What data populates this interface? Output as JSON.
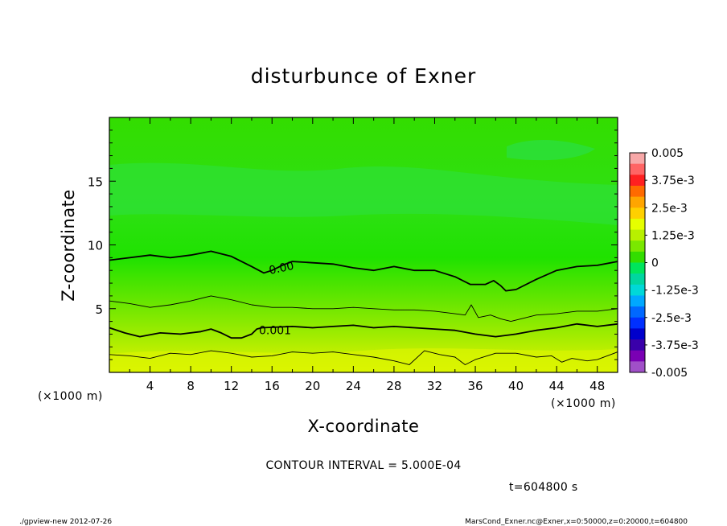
{
  "chart_data": {
    "type": "heatmap",
    "title": "disturbunce of Exner",
    "xlabel": "X-coordinate",
    "ylabel": "Z-coordinate",
    "x_unit": "(×1000 m)",
    "y_unit": "(×1000 m)",
    "xlim": [
      0,
      50
    ],
    "ylim": [
      0,
      20
    ],
    "x_ticks": [
      4,
      8,
      12,
      16,
      20,
      24,
      28,
      32,
      36,
      40,
      44,
      48
    ],
    "y_ticks": [
      5,
      10,
      15
    ],
    "colorbar": {
      "range": [
        -0.005,
        0.005
      ],
      "labels": [
        "0.005",
        "3.75e-3",
        "2.5e-3",
        "1.25e-3",
        "0",
        "-1.25e-3",
        "-2.5e-3",
        "-3.75e-3",
        "-0.005"
      ],
      "colors": [
        "#f7a8a8",
        "#ff6464",
        "#ff2020",
        "#ff6a00",
        "#ffa500",
        "#ffd000",
        "#e6ff00",
        "#b8f000",
        "#7ae800",
        "#33dd00",
        "#00e55c",
        "#00d6a0",
        "#00d8d8",
        "#00a8ff",
        "#0068ff",
        "#0030ff",
        "#0000cc",
        "#3a00aa",
        "#7a00b4",
        "#a050c8"
      ]
    },
    "contour_labels": [
      "0.00",
      "0.001"
    ],
    "contours": [
      {
        "level": 0.0,
        "style": "thick",
        "label": "0.00",
        "points": [
          [
            0,
            8.8
          ],
          [
            2,
            9.0
          ],
          [
            4,
            9.2
          ],
          [
            6,
            9.0
          ],
          [
            8,
            9.2
          ],
          [
            10,
            9.5
          ],
          [
            12,
            9.1
          ],
          [
            14,
            8.3
          ],
          [
            15.2,
            7.8
          ],
          [
            16,
            8.0
          ],
          [
            17,
            8.4
          ],
          [
            18,
            8.7
          ],
          [
            20,
            8.6
          ],
          [
            22,
            8.5
          ],
          [
            24,
            8.2
          ],
          [
            26,
            8.0
          ],
          [
            28,
            8.3
          ],
          [
            30,
            8.0
          ],
          [
            32,
            8.0
          ],
          [
            34,
            7.5
          ],
          [
            35.5,
            6.9
          ],
          [
            37,
            6.9
          ],
          [
            37.8,
            7.2
          ],
          [
            38.5,
            6.8
          ],
          [
            39,
            6.4
          ],
          [
            40,
            6.5
          ],
          [
            42,
            7.3
          ],
          [
            44,
            8.0
          ],
          [
            46,
            8.3
          ],
          [
            48,
            8.4
          ],
          [
            50,
            8.7
          ]
        ]
      },
      {
        "level": 0.0005,
        "style": "thin",
        "points": [
          [
            0,
            5.6
          ],
          [
            2,
            5.4
          ],
          [
            4,
            5.1
          ],
          [
            6,
            5.3
          ],
          [
            8,
            5.6
          ],
          [
            10,
            6.0
          ],
          [
            12,
            5.7
          ],
          [
            14,
            5.3
          ],
          [
            16,
            5.1
          ],
          [
            18,
            5.1
          ],
          [
            20,
            5.0
          ],
          [
            22,
            5.0
          ],
          [
            24,
            5.1
          ],
          [
            26,
            5.0
          ],
          [
            28,
            4.9
          ],
          [
            30,
            4.9
          ],
          [
            32,
            4.8
          ],
          [
            34,
            4.6
          ],
          [
            35,
            4.5
          ],
          [
            35.6,
            5.3
          ],
          [
            36.3,
            4.3
          ],
          [
            37.5,
            4.5
          ],
          [
            38.5,
            4.2
          ],
          [
            39.5,
            4.0
          ],
          [
            40.5,
            4.2
          ],
          [
            42,
            4.5
          ],
          [
            44,
            4.6
          ],
          [
            46,
            4.8
          ],
          [
            48,
            4.8
          ],
          [
            50,
            5.0
          ]
        ]
      },
      {
        "level": 0.001,
        "style": "thick",
        "label": "0.001",
        "points": [
          [
            0,
            3.5
          ],
          [
            1.5,
            3.1
          ],
          [
            3,
            2.8
          ],
          [
            5,
            3.1
          ],
          [
            7,
            3.0
          ],
          [
            9,
            3.2
          ],
          [
            10,
            3.4
          ],
          [
            11,
            3.1
          ],
          [
            12,
            2.7
          ],
          [
            13,
            2.7
          ],
          [
            14,
            3.0
          ],
          [
            14.5,
            3.4
          ],
          [
            15,
            3.5
          ],
          [
            18,
            3.6
          ],
          [
            20,
            3.5
          ],
          [
            22,
            3.6
          ],
          [
            24,
            3.7
          ],
          [
            26,
            3.5
          ],
          [
            28,
            3.6
          ],
          [
            30,
            3.5
          ],
          [
            32,
            3.4
          ],
          [
            34,
            3.3
          ],
          [
            36,
            3.0
          ],
          [
            38,
            2.8
          ],
          [
            40,
            3.0
          ],
          [
            42,
            3.3
          ],
          [
            44,
            3.5
          ],
          [
            46,
            3.8
          ],
          [
            48,
            3.6
          ],
          [
            50,
            3.8
          ]
        ]
      },
      {
        "level": 0.0015,
        "style": "thin",
        "points": [
          [
            0,
            1.4
          ],
          [
            2,
            1.3
          ],
          [
            4,
            1.1
          ],
          [
            6,
            1.5
          ],
          [
            8,
            1.4
          ],
          [
            10,
            1.7
          ],
          [
            12,
            1.5
          ],
          [
            14,
            1.2
          ],
          [
            16,
            1.3
          ],
          [
            18,
            1.6
          ],
          [
            20,
            1.5
          ],
          [
            22,
            1.6
          ],
          [
            24,
            1.4
          ],
          [
            26,
            1.2
          ],
          [
            28,
            0.9
          ],
          [
            29.5,
            0.6
          ],
          [
            31,
            1.7
          ],
          [
            32.5,
            1.4
          ],
          [
            34,
            1.2
          ],
          [
            35,
            0.6
          ],
          [
            36,
            1.0
          ],
          [
            38,
            1.5
          ],
          [
            40,
            1.5
          ],
          [
            42,
            1.2
          ],
          [
            43.5,
            1.3
          ],
          [
            44.5,
            0.8
          ],
          [
            45.5,
            1.1
          ],
          [
            47,
            0.9
          ],
          [
            48,
            1.0
          ],
          [
            50,
            1.6
          ]
        ]
      }
    ],
    "contour_interval": "CONTOUR INTERVAL = 5.000E-04",
    "time_label": "t=604800 s",
    "grid": false
  },
  "footer": {
    "left": "./gpview-new   2012-07-26",
    "right": "MarsCond_Exner.nc@Exner,x=0:50000,z=0:20000,t=604800"
  },
  "colors": {
    "frame": "#000000",
    "background": "#ffffff"
  }
}
